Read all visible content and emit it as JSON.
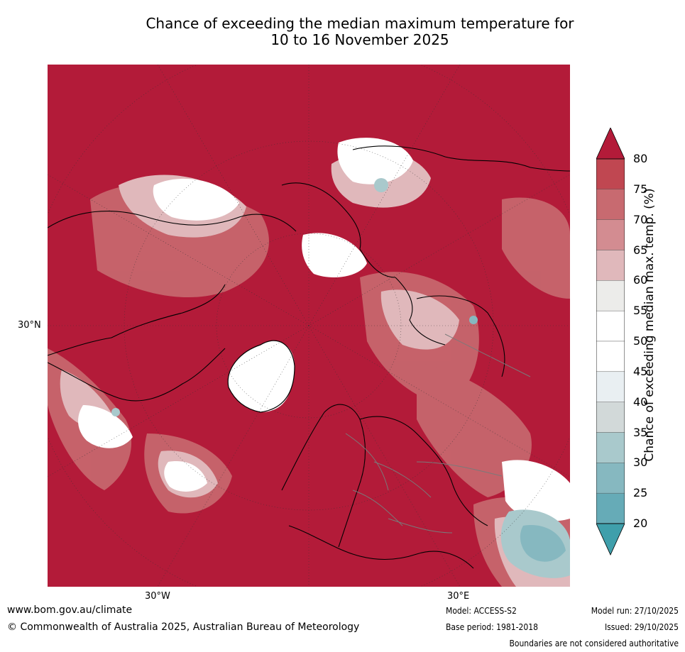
{
  "title_line1": "Chance of exceeding the median maximum temperature for",
  "title_line2": "10 to 16 November 2025",
  "map": {
    "lat_label": "30°N",
    "lon_label_west": "30°W",
    "lon_label_east": "30°E"
  },
  "colorbar": {
    "title": "Chance of exceeding median max. temp. (%)",
    "ticks": [
      "80",
      "75",
      "70",
      "65",
      "60",
      "55",
      "50",
      "45",
      "40",
      "35",
      "30",
      "25",
      "20"
    ],
    "colors": [
      "#b31b39",
      "#c04751",
      "#c86a70",
      "#d38c91",
      "#e0b8bb",
      "#ececea",
      "#ffffff",
      "#ffffff",
      "#e9eff2",
      "#d2d9d9",
      "#a9c9cc",
      "#86b8c0",
      "#66abb7",
      "#3f9fab"
    ]
  },
  "footer": {
    "url": "www.bom.gov.au/climate",
    "copyright": "© Commonwealth of Australia 2025, Australian Bureau of Meteorology",
    "model": "Model: ACCESS-S2",
    "base_period": "Base period: 1981-2018",
    "model_run": "Model run: 27/10/2025",
    "issued": "Issued: 29/10/2025",
    "disclaimer": "Boundaries are not considered authoritative"
  }
}
